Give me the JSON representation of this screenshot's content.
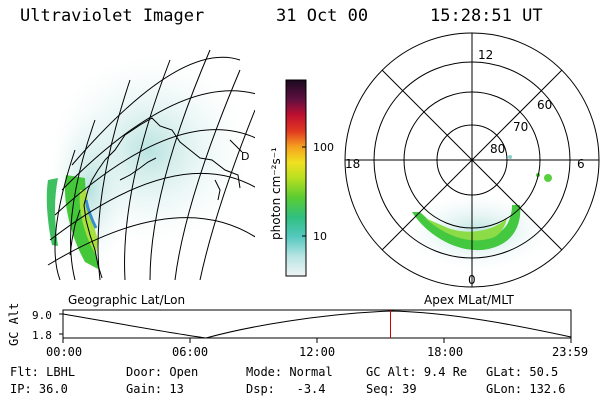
{
  "header": {
    "instrument": "Ultraviolet Imager",
    "date": "31 Oct 00",
    "time": "15:28:51 UT"
  },
  "colorbar": {
    "unit_label": "photon cm⁻²s⁻¹",
    "ticks": [
      "100",
      "10"
    ]
  },
  "polar_plot": {
    "mlt_labels": [
      "12",
      "18",
      "6",
      "0"
    ],
    "mlat_labels": [
      "60",
      "70",
      "80"
    ]
  },
  "panels": {
    "left_title": "Geographic Lat/Lon",
    "right_title": "Apex MLat/MLT",
    "map_letter": "D"
  },
  "altitude_plot": {
    "y_label": "GC Alt",
    "y_ticks": [
      "9.0",
      "1.8"
    ],
    "x_ticks": [
      "00:00",
      "06:00",
      "12:00",
      "18:00",
      "23:59"
    ],
    "current_time_fraction": 0.6447,
    "marker_color": "#cc0000"
  },
  "footer": {
    "row1": [
      {
        "label": "Flt:",
        "value": "LBHL"
      },
      {
        "label": "Door:",
        "value": "Open"
      },
      {
        "label": "Mode:",
        "value": "Normal"
      },
      {
        "label": "GC Alt:",
        "value": "9.4 Re"
      },
      {
        "label": "GLat:",
        "value": "50.5"
      }
    ],
    "row2": [
      {
        "label": "IP:",
        "value": "36.0"
      },
      {
        "label": "Gain:",
        "value": "13"
      },
      {
        "label": "Dsp:",
        "value": "-3.4"
      },
      {
        "label": "Seq:",
        "value": "39"
      },
      {
        "label": "GLon:",
        "value": "132.6"
      }
    ]
  },
  "colors": {
    "colorbar_top": "#1a0a20",
    "colorbar_bottom": "#f0f4f4",
    "aurora_main": "#33cc33",
    "aurora_faint": "#c8e8e8"
  }
}
